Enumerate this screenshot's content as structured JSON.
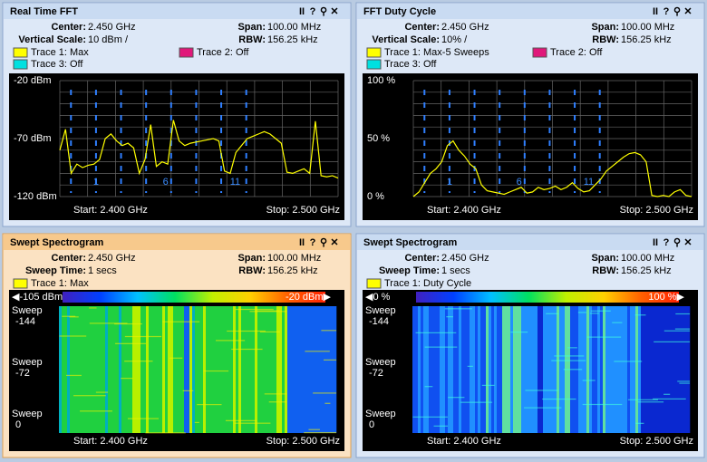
{
  "panels": [
    {
      "title": "Real Time FFT",
      "controls": [
        "II",
        "?",
        "⚲",
        "✕"
      ],
      "fields": [
        {
          "label": "Center:",
          "value": "2.450 GHz"
        },
        {
          "label": "Span:",
          "value": "100.00 MHz"
        },
        {
          "label": "Vertical Scale:",
          "value": "10 dBm /"
        },
        {
          "label": "RBW:",
          "value": "156.25 kHz"
        }
      ],
      "traces": [
        {
          "label": "Trace 1: Max",
          "color": "#ffff00"
        },
        {
          "label": "Trace 2: Off",
          "color": "#e0187a"
        },
        {
          "label": "Trace 3: Off",
          "color": "#00e0e0"
        }
      ],
      "y_labels": [
        "-20 dBm",
        "-70 dBm",
        "-120 dBm"
      ],
      "channels": [
        "1",
        "6",
        "11"
      ],
      "start": "Start: 2.400 GHz",
      "stop": "Stop: 2.500 GHz",
      "plot": {
        "ylim": [
          -120,
          -20
        ],
        "values": [
          -80,
          -62,
          -100,
          -92,
          -95,
          -93,
          -92,
          -88,
          -70,
          -66,
          -72,
          -76,
          -74,
          -78,
          -100,
          -88,
          -58,
          -94,
          -90,
          -92,
          -54,
          -72,
          -76,
          -74,
          -73,
          -72,
          -71,
          -70,
          -72,
          -98,
          -100,
          -82,
          -76,
          -70,
          -68,
          -66,
          -64,
          -66,
          -70,
          -74,
          -99,
          -100,
          -98,
          -96,
          -100,
          -55,
          -102,
          -103,
          -102,
          -104
        ]
      }
    },
    {
      "title": "FFT Duty Cycle",
      "controls": [
        "II",
        "?",
        "⚲",
        "✕"
      ],
      "fields": [
        {
          "label": "Center:",
          "value": "2.450 GHz"
        },
        {
          "label": "Span:",
          "value": "100.00 MHz"
        },
        {
          "label": "Vertical Scale:",
          "value": "10% /"
        },
        {
          "label": "RBW:",
          "value": "156.25 kHz"
        }
      ],
      "traces": [
        {
          "label": "Trace 1: Max-5 Sweeps",
          "color": "#ffff00"
        },
        {
          "label": "Trace 2: Off",
          "color": "#e0187a"
        },
        {
          "label": "Trace 3: Off",
          "color": "#00e0e0"
        }
      ],
      "y_labels": [
        "100 %",
        "50 %",
        "0 %"
      ],
      "channels": [
        "1",
        "6",
        "11"
      ],
      "start": "Start: 2.400 GHz",
      "stop": "Stop: 2.500 GHz",
      "plot": {
        "ylim": [
          0,
          100
        ],
        "values": [
          0,
          4,
          12,
          20,
          24,
          30,
          44,
          48,
          40,
          35,
          28,
          24,
          10,
          5,
          4,
          3,
          2,
          4,
          6,
          8,
          3,
          4,
          8,
          6,
          7,
          9,
          6,
          8,
          12,
          7,
          4,
          5,
          10,
          15,
          22,
          26,
          30,
          34,
          37,
          38,
          36,
          30,
          1,
          0,
          1,
          0,
          4,
          6,
          1,
          0
        ]
      }
    },
    {
      "title": "Swept Spectrogram",
      "controls": [
        "II",
        "?",
        "⚲",
        "✕"
      ],
      "fields": [
        {
          "label": "Center:",
          "value": "2.450 GHz"
        },
        {
          "label": "Span:",
          "value": "100.00 MHz"
        },
        {
          "label": "Sweep Time:",
          "value": "1 secs"
        },
        {
          "label": "RBW:",
          "value": "156.25 kHz"
        }
      ],
      "traces": [
        {
          "label": "Trace 1: Max",
          "color": "#ffff00"
        }
      ],
      "scale_labels": [
        "◀-105 dBm",
        "-20 dBm▶"
      ],
      "sweep_label": "Sweep",
      "sweeps": [
        -144,
        -72,
        0
      ],
      "start": "Start: 2.400 GHz",
      "stop": "Stop: 2.500 GHz"
    },
    {
      "title": "Swept Spectrogram",
      "controls": [
        "II",
        "?",
        "⚲",
        "✕"
      ],
      "fields": [
        {
          "label": "Center:",
          "value": "2.450 GHz"
        },
        {
          "label": "Span:",
          "value": "100.00 MHz"
        },
        {
          "label": "Sweep Time:",
          "value": "1 secs"
        },
        {
          "label": "RBW:",
          "value": "156.25 kHz"
        }
      ],
      "traces": [
        {
          "label": "Trace 1: Duty Cycle",
          "color": "#ffff00"
        }
      ],
      "scale_labels": [
        "◀0 %",
        "100 %▶"
      ],
      "sweep_label": "Sweep",
      "sweeps": [
        -144,
        -72,
        0
      ],
      "start": "Start: 2.400 GHz",
      "stop": "Stop: 2.500 GHz"
    }
  ]
}
